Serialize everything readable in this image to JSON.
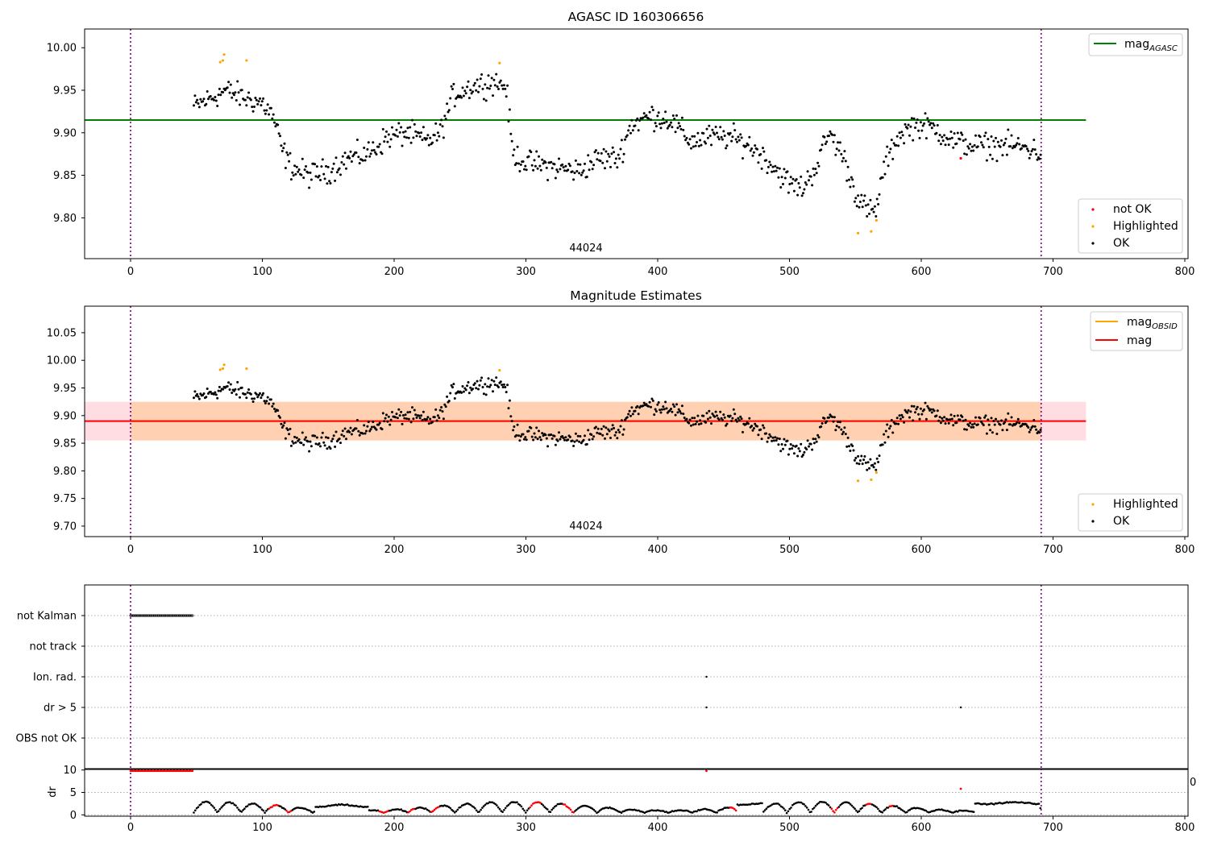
{
  "chart_data": [
    {
      "type": "scatter",
      "title": "AGASC ID 160306656",
      "xlim": [
        -35,
        805
      ],
      "ylim": [
        9.752,
        10.022
      ],
      "xticks": [
        0,
        100,
        200,
        300,
        400,
        500,
        600,
        700,
        800
      ],
      "xtick_labels": [
        "0",
        "100",
        "200",
        "300",
        "400",
        "500",
        "600",
        "700",
        "800"
      ],
      "yticks": [
        9.8,
        9.85,
        9.9,
        9.95,
        10.0
      ],
      "ytick_labels": [
        "9.80",
        "9.85",
        "9.90",
        "9.95",
        "10.00"
      ],
      "vlines": [
        0,
        691
      ],
      "annotation": {
        "text": "44024",
        "x": 345
      },
      "mag_agasc": {
        "value": 9.915,
        "x_range": [
          -35,
          725
        ],
        "color": "#008000",
        "label": "mag",
        "label_sub": "AGASC"
      },
      "legend": {
        "placement": "lower right",
        "entries": [
          "not OK",
          "Highlighted",
          "OK"
        ]
      },
      "highlighted_points": [
        [
          68,
          9.983
        ],
        [
          70,
          9.985
        ],
        [
          71,
          9.992
        ],
        [
          88,
          9.985
        ],
        [
          280,
          9.982
        ],
        [
          552,
          9.782
        ],
        [
          562,
          9.784
        ],
        [
          566,
          9.797
        ]
      ],
      "not_ok_points": [
        [
          630,
          9.87
        ]
      ],
      "grid": false,
      "legend_upper": {
        "placement": "upper right"
      }
    },
    {
      "type": "scatter",
      "title": "Magnitude Estimates",
      "xlim": [
        -35,
        805
      ],
      "ylim": [
        9.681,
        10.098
      ],
      "xticks": [
        0,
        100,
        200,
        300,
        400,
        500,
        600,
        700,
        800
      ],
      "xtick_labels": [
        "0",
        "100",
        "200",
        "300",
        "400",
        "500",
        "600",
        "700",
        "800"
      ],
      "yticks": [
        9.7,
        9.75,
        9.8,
        9.85,
        9.9,
        9.95,
        10.0,
        10.05
      ],
      "ytick_labels": [
        "9.70",
        "9.75",
        "9.80",
        "9.85",
        "9.90",
        "9.95",
        "10.00",
        "10.05"
      ],
      "vlines": [
        0,
        691
      ],
      "annotation": {
        "text": "44024",
        "x": 345
      },
      "mag": {
        "value": 9.89,
        "band": [
          9.855,
          9.925
        ],
        "x_range": [
          -35,
          725
        ],
        "color": "#ff0000",
        "label": "mag"
      },
      "mag_obsid": {
        "value": 9.89,
        "band": [
          9.855,
          9.925
        ],
        "x_range": [
          0,
          691
        ],
        "color": "#ffa500",
        "label": "mag",
        "label_sub": "OBSID"
      },
      "legend": {
        "placement": "lower right",
        "entries": [
          "Highlighted",
          "OK"
        ]
      },
      "grid": false
    },
    {
      "type": "scatter",
      "title": "",
      "xlim": [
        -35,
        805
      ],
      "categories": [
        "not Kalman",
        "not track",
        "Ion. rad.",
        "dr > 5",
        "OBS not OK"
      ],
      "flag_points": {
        "not Kalman": {
          "x_range": [
            0,
            47
          ]
        },
        "Ion. rad.": {
          "x": [
            437
          ]
        },
        "dr > 5": {
          "x": [
            437,
            630
          ]
        }
      },
      "vlines": [
        0,
        691
      ],
      "grid": "horizontal dotted",
      "dr": {
        "ylabel": "dr",
        "ylim": [
          -0.3,
          10.3
        ],
        "yticks": [
          0,
          5,
          10
        ],
        "ytick_labels": [
          "0",
          "5",
          "10"
        ],
        "outliers": [
          [
            437,
            9.8
          ],
          [
            630,
            5.8
          ]
        ],
        "red_x_ranges": [
          [
            0,
            47
          ],
          [
            105,
            112
          ],
          [
            118,
            122
          ],
          [
            188,
            196
          ],
          [
            210,
            216
          ],
          [
            228,
            234
          ],
          [
            303,
            312
          ],
          [
            328,
            337
          ],
          [
            455,
            460
          ],
          [
            532,
            537
          ],
          [
            558,
            562
          ],
          [
            575,
            579
          ]
        ],
        "edge_label": "0"
      },
      "xticks": [
        0,
        100,
        200,
        300,
        400,
        500,
        600,
        700,
        800
      ],
      "xtick_labels": [
        "0",
        "100",
        "200",
        "300",
        "400",
        "500",
        "600",
        "700",
        "800"
      ]
    }
  ]
}
